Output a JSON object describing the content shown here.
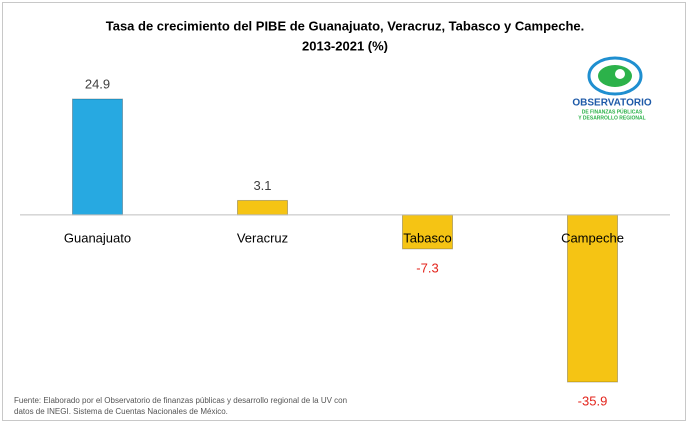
{
  "chart_data": {
    "type": "bar",
    "title": [
      "Tasa de crecimiento del PIBE de Guanajuato, Veracruz, Tabasco y Campeche.",
      "2013-2021 (%)"
    ],
    "categories": [
      "Guanajuato",
      "Veracruz",
      "Tabasco",
      "Campeche"
    ],
    "values": [
      24.9,
      3.1,
      -7.3,
      -35.9
    ],
    "colors": [
      "#27a9e1",
      "#f5c414",
      "#f5c414",
      "#f5c414"
    ],
    "label_color": "#404040",
    "negative_label_color": "#e3231b",
    "source": [
      "Fuente: Elaborado por el Observatorio de finanzas públicas y desarrollo regional de la UV con",
      "datos de  INEGI. Sistema de Cuentas Nacionales de México."
    ]
  },
  "logo": {
    "name": "OBSERVATORIO",
    "subtitle": [
      "DE FINANZAS PÚBLICAS",
      "Y DESARROLLO REGIONAL"
    ]
  }
}
